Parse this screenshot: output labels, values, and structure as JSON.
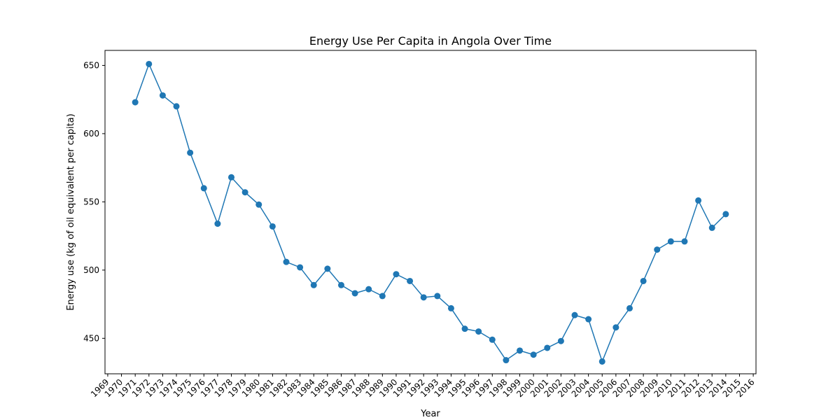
{
  "chart_data": {
    "type": "line",
    "title": "Energy Use Per Capita in Angola Over Time",
    "xlabel": "Year",
    "ylabel": "Energy use (kg of oil equivalent per capita)",
    "xlim": [
      1968.8,
      2016.2
    ],
    "ylim": [
      424,
      661
    ],
    "x_ticks": [
      1969,
      1970,
      1971,
      1972,
      1973,
      1974,
      1975,
      1976,
      1977,
      1978,
      1979,
      1980,
      1981,
      1982,
      1983,
      1984,
      1985,
      1986,
      1987,
      1988,
      1989,
      1990,
      1991,
      1992,
      1993,
      1994,
      1995,
      1996,
      1997,
      1998,
      1999,
      2000,
      2001,
      2002,
      2003,
      2004,
      2005,
      2006,
      2007,
      2008,
      2009,
      2010,
      2011,
      2012,
      2013,
      2014,
      2015,
      2016
    ],
    "y_ticks": [
      450,
      500,
      550,
      600,
      650
    ],
    "grid": false,
    "color": "#1f77b4",
    "series": [
      {
        "x": [
          1971,
          1972,
          1973,
          1974,
          1975,
          1976,
          1977,
          1978,
          1979,
          1980,
          1981,
          1982,
          1983,
          1984,
          1985,
          1986,
          1987,
          1988,
          1989,
          1990,
          1991,
          1992,
          1993,
          1994,
          1995,
          1996,
          1997,
          1998,
          1999,
          2000,
          2001,
          2002,
          2003,
          2004,
          2005,
          2006,
          2007,
          2008,
          2009,
          2010,
          2011,
          2012,
          2013,
          2014
        ],
        "y": [
          623,
          651,
          628,
          620,
          586,
          560,
          534,
          568,
          557,
          548,
          532,
          506,
          502,
          489,
          501,
          489,
          483,
          486,
          481,
          497,
          492,
          480,
          481,
          472,
          457,
          455,
          449,
          434,
          441,
          438,
          443,
          448,
          467,
          464,
          433,
          458,
          472,
          492,
          515,
          521,
          521,
          551,
          531,
          541
        ]
      }
    ]
  }
}
